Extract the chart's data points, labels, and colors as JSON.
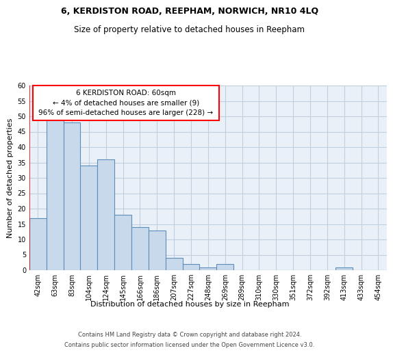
{
  "title": "6, KERDISTON ROAD, REEPHAM, NORWICH, NR10 4LQ",
  "subtitle": "Size of property relative to detached houses in Reepham",
  "xlabel": "Distribution of detached houses by size in Reepham",
  "ylabel": "Number of detached properties",
  "bar_color": "#c9d9ec",
  "bar_edge_color": "#5b8db8",
  "grid_color": "#c0cfe0",
  "background_color": "#eaf0f8",
  "categories": [
    "42sqm",
    "63sqm",
    "83sqm",
    "104sqm",
    "124sqm",
    "145sqm",
    "166sqm",
    "186sqm",
    "207sqm",
    "227sqm",
    "248sqm",
    "269sqm",
    "289sqm",
    "310sqm",
    "330sqm",
    "351sqm",
    "372sqm",
    "392sqm",
    "413sqm",
    "433sqm",
    "454sqm"
  ],
  "values": [
    17,
    49,
    48,
    34,
    36,
    18,
    14,
    13,
    4,
    2,
    1,
    2,
    0,
    0,
    0,
    0,
    0,
    0,
    1,
    0,
    0
  ],
  "ylim": [
    0,
    60
  ],
  "yticks": [
    0,
    5,
    10,
    15,
    20,
    25,
    30,
    35,
    40,
    45,
    50,
    55,
    60
  ],
  "annotation_text_line1": "6 KERDISTON ROAD: 60sqm",
  "annotation_text_line2": "← 4% of detached houses are smaller (9)",
  "annotation_text_line3": "96% of semi-detached houses are larger (228) →",
  "footer_line1": "Contains HM Land Registry data © Crown copyright and database right 2024.",
  "footer_line2": "Contains public sector information licensed under the Open Government Licence v3.0.",
  "title_fontsize": 9,
  "subtitle_fontsize": 8.5,
  "ylabel_fontsize": 8,
  "xlabel_fontsize": 8,
  "tick_fontsize": 7,
  "footer_fontsize": 6
}
